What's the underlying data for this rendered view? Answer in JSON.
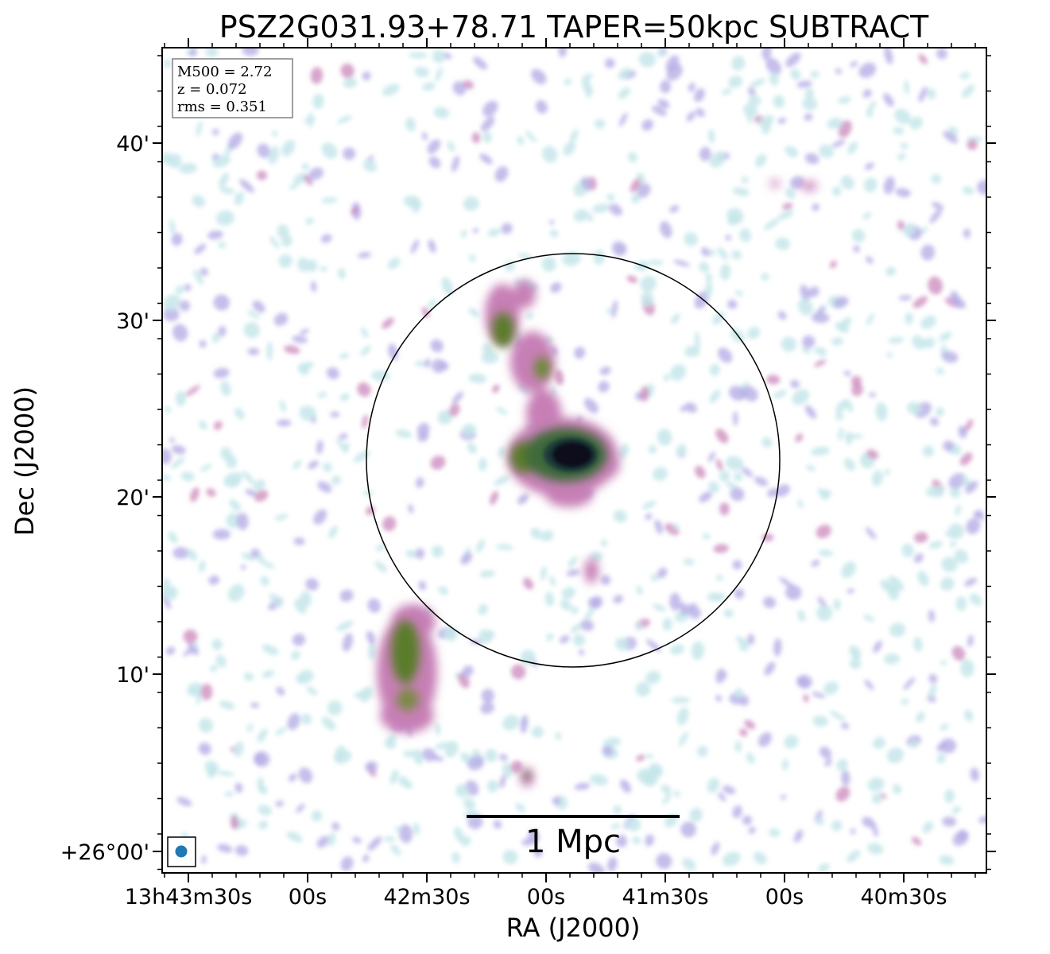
{
  "figure": {
    "title": "PSZ2G031.93+78.71 TAPER=50kpc SUBTRACT",
    "xlabel": "RA (J2000)",
    "ylabel": "Dec (J2000)",
    "info_box": {
      "lines": [
        "M500 = 2.72",
        "z = 0.072",
        "rms = 0.351"
      ]
    },
    "scale_bar": {
      "label": "1 Mpc"
    },
    "x_ticks": [
      "13h43m30s",
      "00s",
      "42m30s",
      "00s",
      "41m30s",
      "00s",
      "40m30s"
    ],
    "y_ticks": [
      "40'",
      "30'",
      "20'",
      "10'",
      "+26°00'"
    ],
    "beam": {
      "color": "#1f77b4"
    },
    "colors": {
      "faint": "#c6e6ea",
      "low": "#b7aee6",
      "mid": "#c77fb6",
      "high": "#5a7d2a",
      "peak": "#0a0a1a"
    }
  }
}
